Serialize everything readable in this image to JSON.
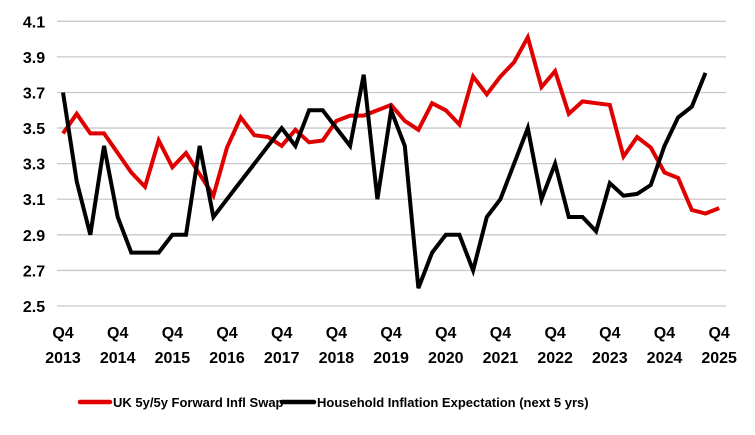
{
  "chart_data": {
    "type": "line",
    "title": "",
    "xlabel": "",
    "ylabel": "",
    "ylim": [
      2.5,
      4.1
    ],
    "yticks": [
      2.5,
      2.7,
      2.9,
      3.1,
      3.3,
      3.5,
      3.7,
      3.9,
      4.1
    ],
    "grid": true,
    "legend_position": "bottom",
    "x": [
      "Q4 2013",
      "Q1 2014",
      "Q2 2014",
      "Q3 2014",
      "Q4 2014",
      "Q1 2015",
      "Q2 2015",
      "Q3 2015",
      "Q4 2015",
      "Q1 2016",
      "Q2 2016",
      "Q3 2016",
      "Q4 2016",
      "Q1 2017",
      "Q2 2017",
      "Q3 2017",
      "Q4 2017",
      "Q1 2018",
      "Q2 2018",
      "Q3 2018",
      "Q4 2018",
      "Q1 2019",
      "Q2 2019",
      "Q3 2019",
      "Q4 2019",
      "Q1 2020",
      "Q2 2020",
      "Q3 2020",
      "Q4 2020",
      "Q1 2021",
      "Q2 2021",
      "Q3 2021",
      "Q4 2021",
      "Q1 2022",
      "Q2 2022",
      "Q3 2022",
      "Q4 2022",
      "Q1 2023",
      "Q2 2023",
      "Q3 2023",
      "Q4 2023",
      "Q1 2024",
      "Q2 2024",
      "Q3 2024",
      "Q4 2024",
      "Q1 2025",
      "Q2 2025",
      "Q3 2025",
      "Q4 2025"
    ],
    "xtick_labels": [
      {
        "q": "Q4",
        "year": "2013"
      },
      {
        "q": "Q4",
        "year": "2014"
      },
      {
        "q": "Q4",
        "year": "2015"
      },
      {
        "q": "Q4",
        "year": "2016"
      },
      {
        "q": "Q4",
        "year": "2017"
      },
      {
        "q": "Q4",
        "year": "2018"
      },
      {
        "q": "Q4",
        "year": "2019"
      },
      {
        "q": "Q4",
        "year": "2020"
      },
      {
        "q": "Q4",
        "year": "2021"
      },
      {
        "q": "Q4",
        "year": "2022"
      },
      {
        "q": "Q4",
        "year": "2023"
      },
      {
        "q": "Q4",
        "year": "2024"
      },
      {
        "q": "Q4",
        "year": "2025"
      }
    ],
    "series": [
      {
        "name": "UK 5y/5y Forward Infl Swap",
        "color": "#e00000",
        "values": [
          3.47,
          3.58,
          3.47,
          3.47,
          3.36,
          3.25,
          3.17,
          3.43,
          3.28,
          3.36,
          3.24,
          3.12,
          3.39,
          3.56,
          3.46,
          3.45,
          3.4,
          3.49,
          3.42,
          3.43,
          3.54,
          3.57,
          3.57,
          3.6,
          3.63,
          3.54,
          3.49,
          3.64,
          3.6,
          3.52,
          3.79,
          3.69,
          3.79,
          3.87,
          4.01,
          3.73,
          3.82,
          3.58,
          3.65,
          3.64,
          3.63,
          3.34,
          3.45,
          3.39,
          3.25,
          3.22,
          3.04,
          3.02,
          3.05
        ]
      },
      {
        "name": "Household Inflation Expectation (next 5 yrs)",
        "color": "#000000",
        "values": [
          3.7,
          3.2,
          2.9,
          3.4,
          3.0,
          2.8,
          2.8,
          2.8,
          2.9,
          2.9,
          3.4,
          3.0,
          3.1,
          3.2,
          3.3,
          3.4,
          3.5,
          3.4,
          3.6,
          3.6,
          3.5,
          3.4,
          3.8,
          3.1,
          3.6,
          3.4,
          2.6,
          2.8,
          2.9,
          2.9,
          2.7,
          3.0,
          3.1,
          3.3,
          3.5,
          3.1,
          3.3,
          3.0,
          3.0,
          2.92,
          3.19,
          3.12,
          3.13,
          3.18,
          3.4,
          3.56,
          3.62,
          3.81,
          null
        ]
      }
    ]
  }
}
